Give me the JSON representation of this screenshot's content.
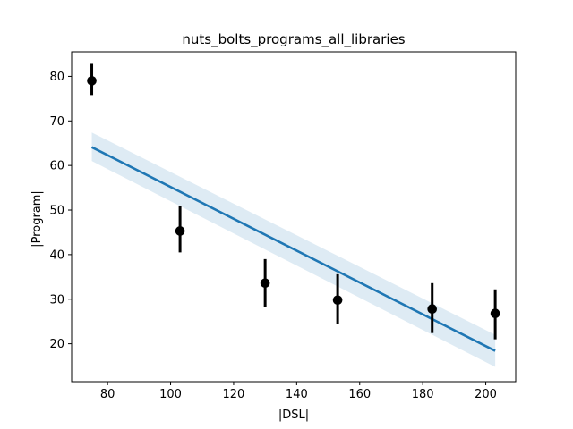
{
  "chart_data": {
    "type": "scatter",
    "title": "nuts_bolts_programs_all_libraries",
    "xlabel": "|DSL|",
    "ylabel": "|Program|",
    "xlim": [
      68.6,
      209.5
    ],
    "ylim": [
      11.5,
      85.5
    ],
    "xticks": [
      80,
      100,
      120,
      140,
      160,
      180,
      200
    ],
    "yticks": [
      20,
      30,
      40,
      50,
      60,
      70,
      80
    ],
    "grid": false,
    "points": [
      {
        "x": 75,
        "y": 79,
        "ylow": 75.8,
        "yhigh": 82.8
      },
      {
        "x": 103,
        "y": 45.3,
        "ylow": 40.5,
        "yhigh": 51.0
      },
      {
        "x": 130,
        "y": 33.6,
        "ylow": 28.2,
        "yhigh": 39.0
      },
      {
        "x": 153,
        "y": 29.8,
        "ylow": 24.4,
        "yhigh": 35.6
      },
      {
        "x": 183,
        "y": 27.8,
        "ylow": 22.4,
        "yhigh": 33.6
      },
      {
        "x": 203,
        "y": 26.8,
        "ylow": 21.0,
        "yhigh": 32.2
      }
    ],
    "regression": {
      "x": [
        75,
        203
      ],
      "y": [
        64.1,
        18.4
      ],
      "ci_low": [
        61.0,
        14.8
      ],
      "ci_high": [
        67.4,
        22.0
      ]
    },
    "colors": {
      "points": "#000000",
      "line": "#1f77b4",
      "band": "#1f77b4"
    }
  }
}
